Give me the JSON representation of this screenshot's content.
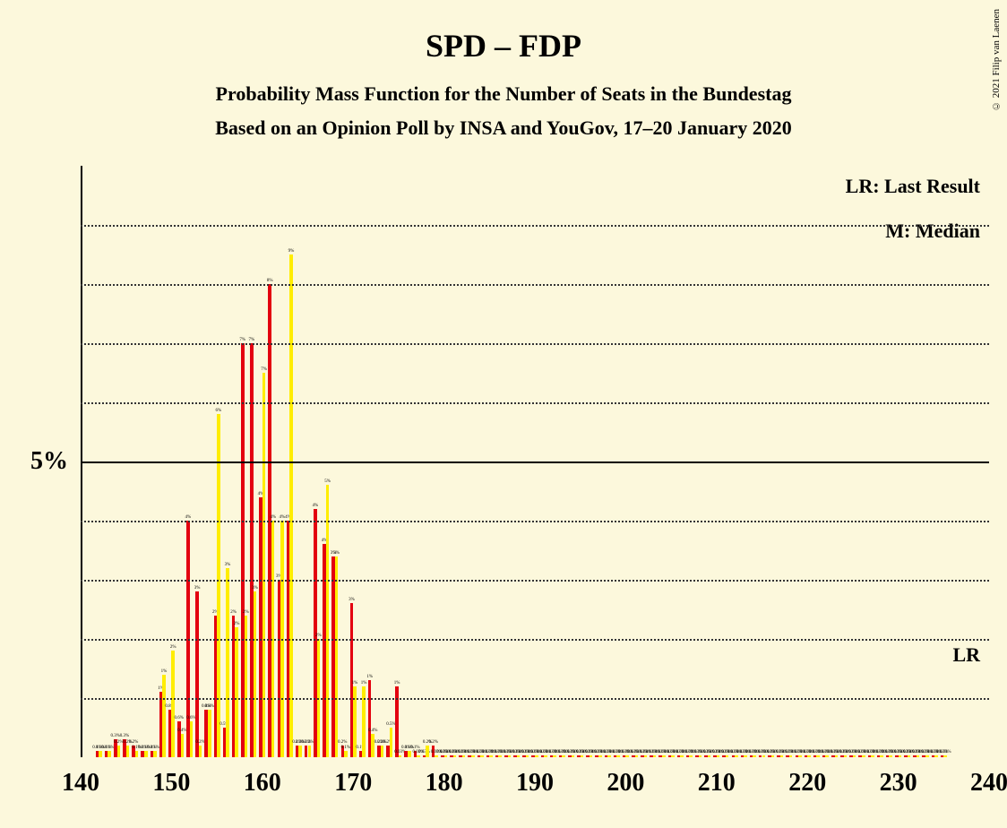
{
  "background_color": "#fcf8dc",
  "copyright": "© 2021 Filip van Laenen",
  "title": "SPD – FDP",
  "subtitle1": "Probability Mass Function for the Number of Seats in the Bundestag",
  "subtitle2": "Based on an Opinion Poll by INSA and YouGov, 17–20 January 2020",
  "legend_lr": "LR: Last Result",
  "legend_m": "M: Median",
  "lr_label": "LR",
  "colors": {
    "series_a": "#e3000f",
    "series_b": "#ffed00",
    "grid": "#333333",
    "text": "#000000"
  },
  "chart": {
    "type": "bar",
    "xmin": 140,
    "xmax": 240,
    "ymax": 10,
    "y_major": 5,
    "y_minor_step": 1,
    "x_tick_step": 10,
    "x_ticks": [
      140,
      150,
      160,
      170,
      180,
      190,
      200,
      210,
      220,
      230,
      240
    ],
    "lr_y_level": 1.5,
    "bars": [
      {
        "x": 141,
        "a": 0,
        "b": 0
      },
      {
        "x": 142,
        "a": 0.1,
        "b": 0.1
      },
      {
        "x": 143,
        "a": 0.1,
        "b": 0.1
      },
      {
        "x": 144,
        "a": 0.3,
        "b": 0.2
      },
      {
        "x": 145,
        "a": 0.3,
        "b": 0.2
      },
      {
        "x": 146,
        "a": 0.2,
        "b": 0.1
      },
      {
        "x": 147,
        "a": 0.1,
        "b": 0.1
      },
      {
        "x": 148,
        "a": 0.1,
        "b": 0.1
      },
      {
        "x": 149,
        "a": 1.1,
        "b": 1.4
      },
      {
        "x": 150,
        "a": 0.8,
        "b": 1.8
      },
      {
        "x": 151,
        "a": 0.6,
        "b": 0.4
      },
      {
        "x": 152,
        "a": 4.0,
        "b": 0.6
      },
      {
        "x": 153,
        "a": 2.8,
        "b": 0.2
      },
      {
        "x": 154,
        "a": 0.8,
        "b": 0.8
      },
      {
        "x": 155,
        "a": 2.4,
        "b": 5.8
      },
      {
        "x": 156,
        "a": 0.5,
        "b": 3.2
      },
      {
        "x": 157,
        "a": 2.4,
        "b": 2.2
      },
      {
        "x": 158,
        "a": 7.0,
        "b": 2.4
      },
      {
        "x": 159,
        "a": 7.0,
        "b": 2.8
      },
      {
        "x": 160,
        "a": 4.4,
        "b": 6.5
      },
      {
        "x": 161,
        "a": 8.0,
        "b": 4.0
      },
      {
        "x": 162,
        "a": 3.0,
        "b": 4.0
      },
      {
        "x": 163,
        "a": 4.0,
        "b": 8.5
      },
      {
        "x": 164,
        "a": 0.2,
        "b": 0.2
      },
      {
        "x": 165,
        "a": 0.2,
        "b": 0.2
      },
      {
        "x": 166,
        "a": 4.2,
        "b": 2.0
      },
      {
        "x": 167,
        "a": 3.6,
        "b": 4.6
      },
      {
        "x": 168,
        "a": 3.4,
        "b": 3.4
      },
      {
        "x": 169,
        "a": 0.2,
        "b": 0.1
      },
      {
        "x": 170,
        "a": 2.6,
        "b": 1.2
      },
      {
        "x": 171,
        "a": 0.1,
        "b": 1.2
      },
      {
        "x": 172,
        "a": 1.3,
        "b": 0.4
      },
      {
        "x": 173,
        "a": 0.2,
        "b": 0.2
      },
      {
        "x": 174,
        "a": 0.2,
        "b": 0.5
      },
      {
        "x": 175,
        "a": 1.2,
        "b": 0.03
      },
      {
        "x": 176,
        "a": 0.1,
        "b": 0.1
      },
      {
        "x": 177,
        "a": 0.1,
        "b": 0.03
      },
      {
        "x": 178,
        "a": 0.03,
        "b": 0.2
      },
      {
        "x": 179,
        "a": 0.2,
        "b": 0.03
      },
      {
        "x": 180,
        "a": 0.03,
        "b": 0.03
      },
      {
        "x": 181,
        "a": 0.03,
        "b": 0.03
      },
      {
        "x": 182,
        "a": 0.03,
        "b": 0.03
      },
      {
        "x": 183,
        "a": 0.03,
        "b": 0.03
      },
      {
        "x": 184,
        "a": 0.03,
        "b": 0.03
      },
      {
        "x": 185,
        "a": 0.03,
        "b": 0.03
      },
      {
        "x": 186,
        "a": 0.03,
        "b": 0.03
      },
      {
        "x": 187,
        "a": 0.03,
        "b": 0.03
      },
      {
        "x": 188,
        "a": 0.03,
        "b": 0.03
      },
      {
        "x": 189,
        "a": 0.03,
        "b": 0.03
      },
      {
        "x": 190,
        "a": 0.03,
        "b": 0.03
      },
      {
        "x": 191,
        "a": 0.03,
        "b": 0.03
      },
      {
        "x": 192,
        "a": 0.03,
        "b": 0.03
      },
      {
        "x": 193,
        "a": 0.03,
        "b": 0.03
      },
      {
        "x": 194,
        "a": 0.03,
        "b": 0.03
      },
      {
        "x": 195,
        "a": 0.03,
        "b": 0.03
      },
      {
        "x": 196,
        "a": 0.03,
        "b": 0.03
      },
      {
        "x": 197,
        "a": 0.03,
        "b": 0.03
      },
      {
        "x": 198,
        "a": 0.03,
        "b": 0.03
      },
      {
        "x": 199,
        "a": 0.03,
        "b": 0.03
      },
      {
        "x": 200,
        "a": 0.03,
        "b": 0.03
      },
      {
        "x": 201,
        "a": 0.03,
        "b": 0.03
      },
      {
        "x": 202,
        "a": 0.03,
        "b": 0.03
      },
      {
        "x": 203,
        "a": 0.03,
        "b": 0.03
      },
      {
        "x": 204,
        "a": 0.03,
        "b": 0.03
      },
      {
        "x": 205,
        "a": 0.03,
        "b": 0.03
      },
      {
        "x": 206,
        "a": 0.03,
        "b": 0.03
      },
      {
        "x": 207,
        "a": 0.03,
        "b": 0.03
      },
      {
        "x": 208,
        "a": 0.03,
        "b": 0.03
      },
      {
        "x": 209,
        "a": 0.03,
        "b": 0.03
      },
      {
        "x": 210,
        "a": 0.03,
        "b": 0.03
      },
      {
        "x": 211,
        "a": 0.03,
        "b": 0.03
      },
      {
        "x": 212,
        "a": 0.03,
        "b": 0.03
      },
      {
        "x": 213,
        "a": 0.03,
        "b": 0.03
      },
      {
        "x": 214,
        "a": 0.03,
        "b": 0.03
      },
      {
        "x": 215,
        "a": 0.03,
        "b": 0.03
      },
      {
        "x": 216,
        "a": 0.03,
        "b": 0.03
      },
      {
        "x": 217,
        "a": 0.03,
        "b": 0.03
      },
      {
        "x": 218,
        "a": 0.03,
        "b": 0.03
      },
      {
        "x": 219,
        "a": 0.03,
        "b": 0.03
      },
      {
        "x": 220,
        "a": 0.03,
        "b": 0.03
      },
      {
        "x": 221,
        "a": 0.03,
        "b": 0.03
      },
      {
        "x": 222,
        "a": 0.03,
        "b": 0.03
      },
      {
        "x": 223,
        "a": 0.03,
        "b": 0.03
      },
      {
        "x": 224,
        "a": 0.03,
        "b": 0.03
      },
      {
        "x": 225,
        "a": 0.03,
        "b": 0.03
      },
      {
        "x": 226,
        "a": 0.03,
        "b": 0.03
      },
      {
        "x": 227,
        "a": 0.03,
        "b": 0.03
      },
      {
        "x": 228,
        "a": 0.03,
        "b": 0.03
      },
      {
        "x": 229,
        "a": 0.03,
        "b": 0.03
      },
      {
        "x": 230,
        "a": 0.03,
        "b": 0.03
      },
      {
        "x": 231,
        "a": 0.03,
        "b": 0.03
      },
      {
        "x": 232,
        "a": 0.03,
        "b": 0.03
      },
      {
        "x": 233,
        "a": 0.03,
        "b": 0.03
      },
      {
        "x": 234,
        "a": 0.03,
        "b": 0.03
      },
      {
        "x": 235,
        "a": 0.03,
        "b": 0.03
      }
    ],
    "bar_unit_width_frac": 0.35,
    "label_b_suffix": "%"
  }
}
